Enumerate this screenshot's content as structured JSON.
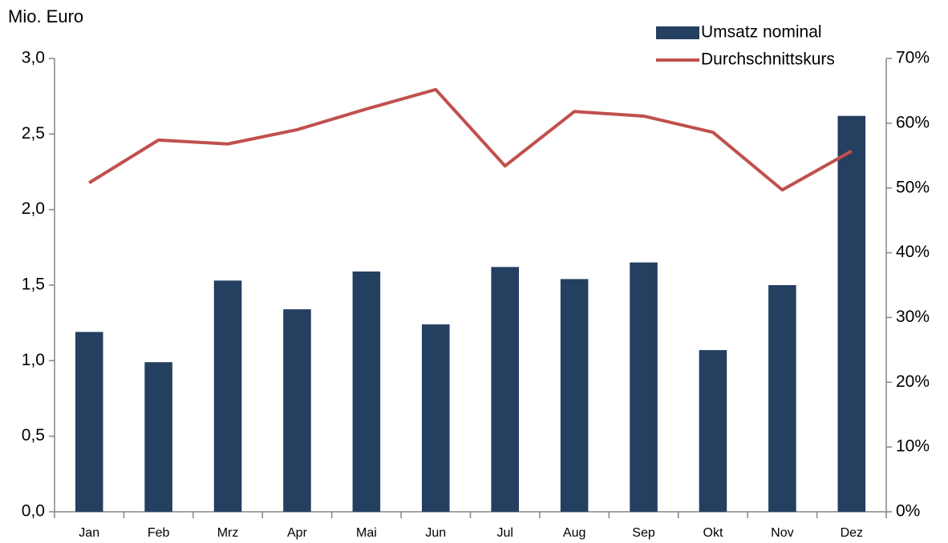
{
  "chart_data": {
    "type": "bar",
    "y_label": "Mio. Euro",
    "categories": [
      "Jan",
      "Feb",
      "Mrz",
      "Apr",
      "Mai",
      "Jun",
      "Jul",
      "Aug",
      "Sep",
      "Okt",
      "Nov",
      "Dez"
    ],
    "series": [
      {
        "name": "Umsatz nominal",
        "type": "bar",
        "color": "#243f60",
        "values": [
          1.19,
          0.99,
          1.53,
          1.34,
          1.59,
          1.24,
          1.62,
          1.54,
          1.65,
          1.07,
          1.5,
          2.62
        ]
      },
      {
        "name": "Durchschnittskurs",
        "type": "line",
        "axis": "y2",
        "color": "#c0504d",
        "values": [
          50.8,
          57.4,
          56.8,
          59.0,
          62.2,
          65.2,
          53.4,
          61.8,
          61.1,
          58.6,
          49.7,
          55.7
        ]
      }
    ],
    "ylim": [
      0,
      3
    ],
    "yticks": [
      {
        "value": 0,
        "label": "0,0"
      },
      {
        "value": 0.5,
        "label": "0,5"
      },
      {
        "value": 1,
        "label": "1,0"
      },
      {
        "value": 1.5,
        "label": "1,5"
      },
      {
        "value": 2,
        "label": "2,0"
      },
      {
        "value": 2.5,
        "label": "2,5"
      },
      {
        "value": 3,
        "label": "3,0"
      }
    ],
    "y2lim": [
      0,
      70
    ],
    "y2ticks": [
      {
        "value": 0,
        "label": "0%"
      },
      {
        "value": 10,
        "label": "10%"
      },
      {
        "value": 20,
        "label": "20%"
      },
      {
        "value": 30,
        "label": "30%"
      },
      {
        "value": 40,
        "label": "40%"
      },
      {
        "value": 50,
        "label": "50%"
      },
      {
        "value": 60,
        "label": "60%"
      },
      {
        "value": 70,
        "label": "70%"
      }
    ],
    "grid": false,
    "legend": "top-right"
  }
}
